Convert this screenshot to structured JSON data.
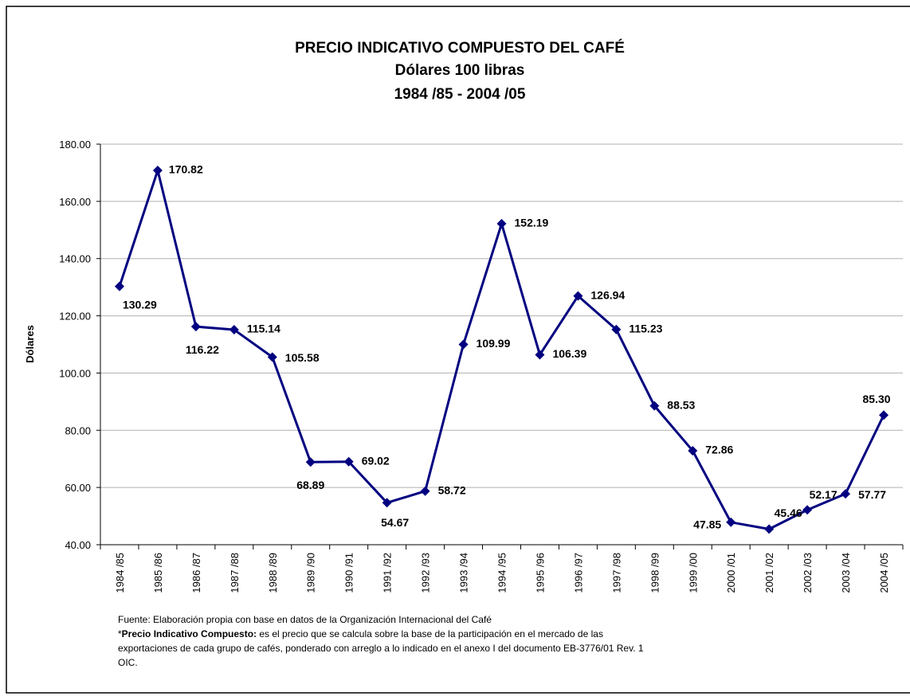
{
  "chart_data": {
    "type": "line",
    "title": "PRECIO INDICATIVO COMPUESTO DEL CAFÉ",
    "subtitle": [
      "Dólares 100 libras",
      "1984 /85 - 2004 /05"
    ],
    "y_label": "Dólares",
    "categories": [
      "1984 /85",
      "1985 /86",
      "1986 /87",
      "1987 /88",
      "1988 /89",
      "1989 /90",
      "1990 /91",
      "1991 /92",
      "1992 /93",
      "1993 /94",
      "1994 /95",
      "1995 /96",
      "1996 /97",
      "1997 /98",
      "1998 /99",
      "1999 /00",
      "2000 /01",
      "2001 /02",
      "2002 /03",
      "2003 /04",
      "2004 /05"
    ],
    "series": [
      {
        "color": "#000080",
        "values": [
          130.29,
          170.82,
          116.22,
          115.14,
          105.58,
          68.89,
          69.02,
          54.67,
          58.72,
          109.99,
          152.19,
          106.39,
          126.94,
          115.23,
          88.53,
          72.86,
          47.85,
          45.46,
          52.17,
          57.77,
          85.3
        ],
        "value_labels": [
          "130.29",
          "170.82",
          "116.22",
          "115.14",
          "105.58",
          "68.89",
          "69.02",
          "54.67",
          "58.72",
          "109.99",
          "152.19",
          "106.39",
          "126.94",
          "115.23",
          "88.53",
          "72.86",
          "47.85",
          "45.46",
          "52.17",
          "57.77",
          "85.30"
        ]
      }
    ],
    "ylim": [
      40,
      180
    ],
    "yticks": [
      {
        "value": 40,
        "label": "40.00"
      },
      {
        "value": 60,
        "label": "60.00"
      },
      {
        "value": 80,
        "label": "80.00"
      },
      {
        "value": 100,
        "label": "100.00"
      },
      {
        "value": 120,
        "label": "120.00"
      },
      {
        "value": 140,
        "label": "140.00"
      },
      {
        "value": 160,
        "label": "160.00"
      },
      {
        "value": 180,
        "label": "180.00"
      }
    ],
    "grid": true,
    "footnote": {
      "source": "Fuente: Elaboración propia con base en datos de la Organización Internacional del Café",
      "asterisk": "*",
      "term": "Precio Indicativo Compuesto:",
      "definition_lines": [
        " es el precio que se calcula sobre la base de la participación en el mercado de las",
        "exportaciones de cada grupo de cafés, ponderado con arreglo a lo indicado en el anexo I del documento EB-3776/01 Rev. 1",
        "OIC."
      ]
    }
  }
}
